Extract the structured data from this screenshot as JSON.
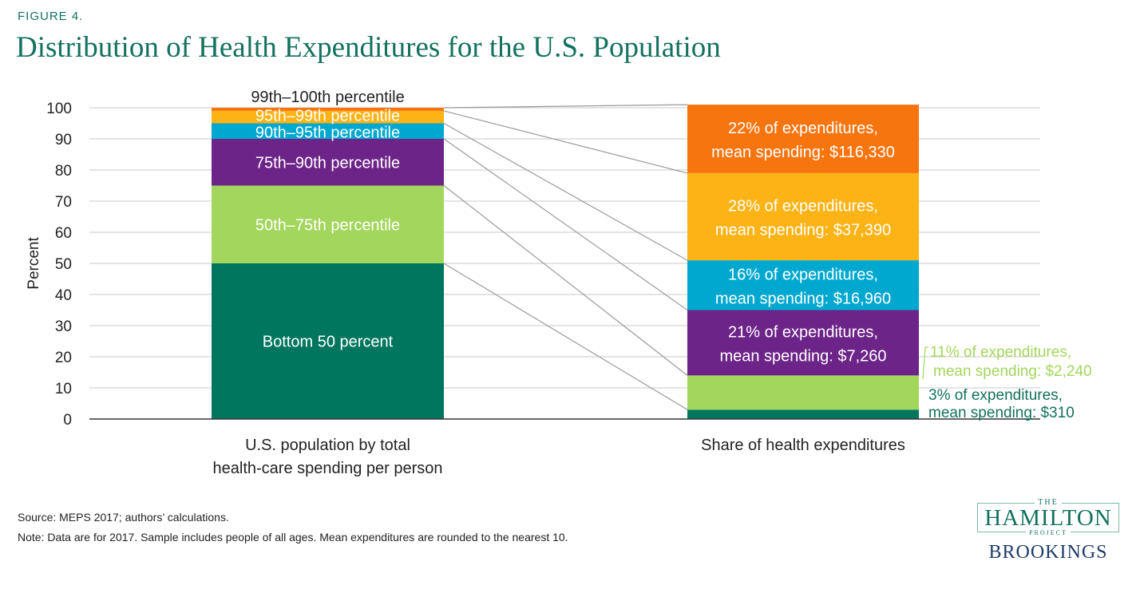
{
  "figure_label": "FIGURE 4.",
  "title": "Distribution of Health Expenditures for the U.S. Population",
  "source": "Source: MEPS 2017; authors’ calculations.",
  "note": "Note: Data are for 2017. Sample includes people of all ages. Mean expenditures are rounded to the nearest 10.",
  "logo": {
    "the": "THE",
    "hamilton": "HAMILTON",
    "project": "PROJECT",
    "brookings": "BROOKINGS"
  },
  "colors": {
    "bottom50": "#00765f",
    "p50_75": "#a3d65c",
    "p75_90": "#6d2488",
    "p90_95": "#00a8cf",
    "p95_99": "#fcb316",
    "p99_100": "#f7750f",
    "grid": "#c9c9c9",
    "connector": "#9a9a9a",
    "text_dark": "#222222",
    "teal_text": "#13715f",
    "green_text": "#a3d65c"
  },
  "chart_data": {
    "type": "bar",
    "stacked": true,
    "ylabel": "Percent",
    "ylim": [
      0,
      100
    ],
    "yticks": [
      0,
      10,
      20,
      30,
      40,
      50,
      60,
      70,
      80,
      90,
      100
    ],
    "grid": true,
    "categories": [
      "U.S. population by total\nhealth-care spending per person",
      "Share of health expenditures"
    ],
    "series": [
      {
        "key": "bottom50",
        "name": "Bottom 50 percent",
        "values": [
          50,
          3
        ],
        "right_label": [
          "3% of expenditures,",
          "mean spending: $310"
        ],
        "right_label_style": "outside-teal"
      },
      {
        "key": "p50_75",
        "name": "50th–75th percentile",
        "values": [
          25,
          11
        ],
        "right_label": [
          "11% of expenditures,",
          "mean spending: $2,240"
        ],
        "right_label_style": "outside-green"
      },
      {
        "key": "p75_90",
        "name": "75th–90th percentile",
        "values": [
          15,
          21
        ],
        "right_label": [
          "21% of expenditures,",
          "mean spending: $7,260"
        ],
        "right_label_style": "inside"
      },
      {
        "key": "p90_95",
        "name": "90th–95th percentile",
        "values": [
          5,
          16
        ],
        "right_label": [
          "16% of expenditures,",
          "mean spending: $16,960"
        ],
        "right_label_style": "inside"
      },
      {
        "key": "p95_99",
        "name": "95th–99th percentile",
        "values": [
          4,
          28
        ],
        "right_label": [
          "28% of expenditures,",
          "mean spending: $37,390"
        ],
        "right_label_style": "inside"
      },
      {
        "key": "p99_100",
        "name": "99th–100th percentile",
        "values": [
          1,
          22
        ],
        "right_label": [
          "22% of expenditures,",
          "mean spending: $116,330"
        ],
        "right_label_style": "inside"
      }
    ]
  }
}
